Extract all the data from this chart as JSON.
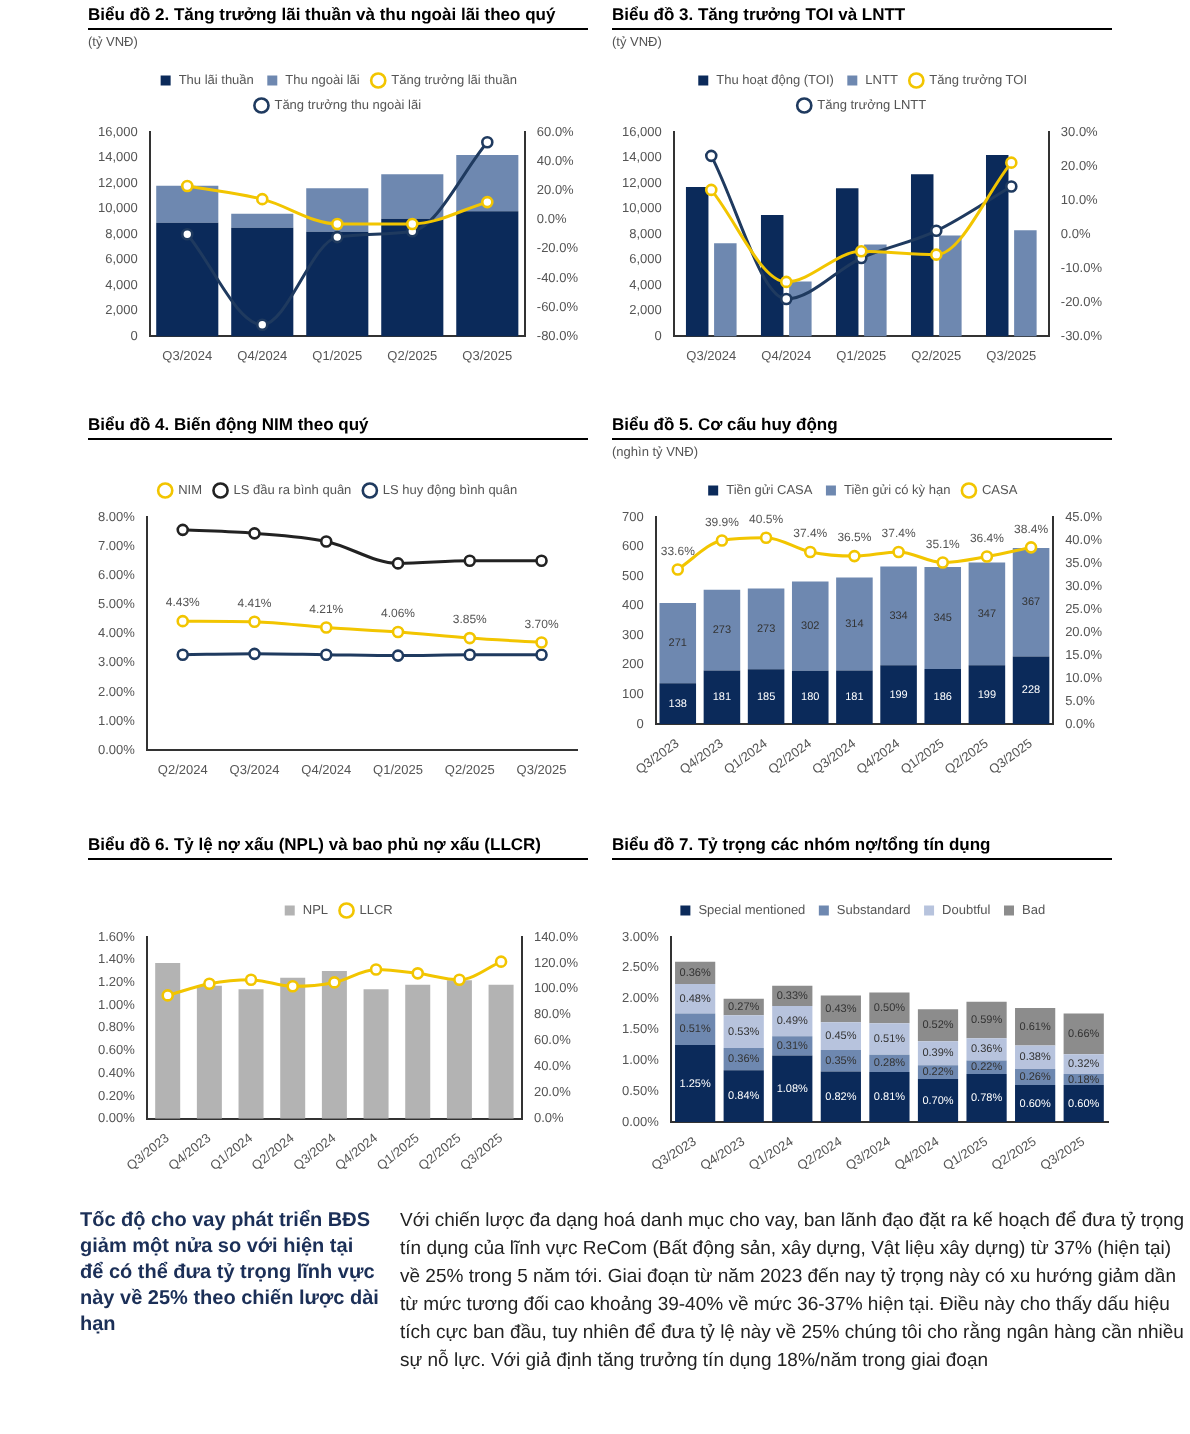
{
  "chart_data": [
    {
      "type": "bar",
      "title": "Biểu đồ 2. Tăng trưởng lãi thuần và thu ngoài lãi theo quý",
      "ylabel": "(tỷ VNĐ)",
      "categories": [
        "Q3/2024",
        "Q4/2024",
        "Q1/2025",
        "Q2/2025",
        "Q3/2025"
      ],
      "stacked": true,
      "legend": "top",
      "marker": "circle",
      "series": [
        {
          "name": "Thu lãi thuần",
          "color": "#0b2a5a",
          "values": [
            8900,
            8500,
            8200,
            9200,
            9800
          ]
        },
        {
          "name": "Thu ngoài lãi",
          "color": "#6e88b0",
          "values": [
            2900,
            1100,
            3400,
            3500,
            4400
          ]
        },
        {
          "name": "Tăng trưởng lãi thuần",
          "type": "line",
          "axis": "y2",
          "color": "#f2c500",
          "values": [
            23,
            14,
            -3,
            -3,
            12
          ]
        },
        {
          "name": "Tăng trưởng thu ngoài lãi",
          "type": "line",
          "axis": "y2",
          "color": "#1f3a5f",
          "values": [
            -10,
            -72,
            -12,
            -8,
            53
          ]
        }
      ],
      "ylim": [
        0,
        16000
      ],
      "yticks": [
        0,
        {
          "value": 2000,
          "label": "2,000"
        },
        {
          "value": 4000,
          "label": "4,000"
        },
        {
          "value": 6000,
          "label": "6,000"
        },
        {
          "value": 8000,
          "label": "8,000"
        },
        {
          "value": 10000,
          "label": "10,000"
        },
        {
          "value": 12000,
          "label": "12,000"
        },
        {
          "value": 14000,
          "label": "14,000"
        },
        {
          "value": 16000,
          "label": "16,000"
        }
      ],
      "y2lim": [
        -80,
        60
      ],
      "y2ticks": [
        {
          "value": -80,
          "label": "-80.0%"
        },
        {
          "value": -60,
          "label": "-60.0%"
        },
        {
          "value": -40,
          "label": "-40.0%"
        },
        {
          "value": -20,
          "label": "-20.0%"
        },
        {
          "value": 0,
          "label": "0.0%"
        },
        {
          "value": 20,
          "label": "20.0%"
        },
        {
          "value": 40,
          "label": "40.0%"
        },
        {
          "value": 60,
          "label": "60.0%"
        }
      ]
    },
    {
      "type": "bar",
      "title": "Biểu đồ 3. Tăng trưởng TOI và LNTT",
      "ylabel": "(tỷ VNĐ)",
      "categories": [
        "Q3/2024",
        "Q4/2024",
        "Q1/2025",
        "Q2/2025",
        "Q3/2025"
      ],
      "legend": "top",
      "marker": "circle",
      "series": [
        {
          "name": "Thu hoạt động (TOI)",
          "color": "#0b2a5a",
          "values": [
            11700,
            9500,
            11600,
            12700,
            14200
          ]
        },
        {
          "name": "LNTT",
          "color": "#6e88b0",
          "values": [
            7300,
            4300,
            7200,
            7900,
            8300
          ]
        },
        {
          "name": "Tăng trưởng TOI",
          "type": "line",
          "axis": "y2",
          "color": "#f2c500",
          "values": [
            13,
            -14,
            -5,
            -6,
            21
          ]
        },
        {
          "name": "Tăng trưởng LNTT",
          "type": "line",
          "axis": "y2",
          "color": "#1f3a5f",
          "values": [
            23,
            -19,
            -7,
            1,
            14
          ]
        }
      ],
      "ylim": [
        0,
        16000
      ],
      "yticks": [
        0,
        {
          "value": 2000,
          "label": "2,000"
        },
        {
          "value": 4000,
          "label": "4,000"
        },
        {
          "value": 6000,
          "label": "6,000"
        },
        {
          "value": 8000,
          "label": "8,000"
        },
        {
          "value": 10000,
          "label": "10,000"
        },
        {
          "value": 12000,
          "label": "12,000"
        },
        {
          "value": 14000,
          "label": "14,000"
        },
        {
          "value": 16000,
          "label": "16,000"
        }
      ],
      "y2lim": [
        -30,
        30
      ],
      "y2ticks": [
        {
          "value": -30,
          "label": "-30.0%"
        },
        {
          "value": -20,
          "label": "-20.0%"
        },
        {
          "value": -10,
          "label": "-10.0%"
        },
        {
          "value": 0,
          "label": "0.0%"
        },
        {
          "value": 10,
          "label": "10.0%"
        },
        {
          "value": 20,
          "label": "20.0%"
        },
        {
          "value": 30,
          "label": "30.0%"
        }
      ]
    },
    {
      "type": "line",
      "title": "Biểu đồ 4. Biến động NIM theo quý",
      "categories": [
        "Q2/2024",
        "Q3/2024",
        "Q4/2024",
        "Q1/2025",
        "Q2/2025",
        "Q3/2025"
      ],
      "legend": "top",
      "marker": "circle",
      "series": [
        {
          "name": "NIM",
          "color": "#f2c500",
          "values": [
            4.43,
            4.41,
            4.21,
            4.06,
            3.85,
            3.7
          ],
          "value_labels": [
            "4.43%",
            "4.41%",
            "4.21%",
            "4.06%",
            "3.85%",
            "3.70%"
          ]
        },
        {
          "name": "LS đầu ra bình quân",
          "color": "#222222",
          "values": [
            7.56,
            7.44,
            7.16,
            6.41,
            6.5,
            6.5
          ]
        },
        {
          "name": "LS huy động bình quân",
          "color": "#1f3a5f",
          "values": [
            3.28,
            3.31,
            3.28,
            3.25,
            3.28,
            3.28
          ]
        }
      ],
      "ylim": [
        0,
        8
      ],
      "yticks": [
        {
          "value": 0,
          "label": "0.00%"
        },
        {
          "value": 1,
          "label": "1.00%"
        },
        {
          "value": 2,
          "label": "2.00%"
        },
        {
          "value": 3,
          "label": "3.00%"
        },
        {
          "value": 4,
          "label": "4.00%"
        },
        {
          "value": 5,
          "label": "5.00%"
        },
        {
          "value": 6,
          "label": "6.00%"
        },
        {
          "value": 7,
          "label": "7.00%"
        },
        {
          "value": 8,
          "label": "8.00%"
        }
      ]
    },
    {
      "type": "bar",
      "title": "Biểu đồ 5. Cơ cấu huy động",
      "ylabel": "(nghìn tỷ VNĐ)",
      "categories": [
        "Q3/2023",
        "Q4/2023",
        "Q1/2024",
        "Q2/2024",
        "Q3/2024",
        "Q4/2024",
        "Q1/2025",
        "Q2/2025",
        "Q3/2025"
      ],
      "stacked": true,
      "legend": "top",
      "marker": "circle",
      "series": [
        {
          "name": "Tiền gửi CASA",
          "color": "#0b2a5a",
          "values": [
            138,
            181,
            185,
            180,
            181,
            199,
            186,
            199,
            228
          ],
          "value_labels": [
            "138",
            "181",
            "185",
            "180",
            "181",
            "199",
            "186",
            "199",
            "228"
          ]
        },
        {
          "name": "Tiền gửi có kỳ hạn",
          "color": "#6e88b0",
          "values": [
            271,
            273,
            273,
            302,
            314,
            334,
            345,
            347,
            367
          ],
          "value_labels": [
            "271",
            "273",
            "273",
            "302",
            "314",
            "334",
            "345",
            "347",
            "367"
          ]
        },
        {
          "name": "CASA",
          "type": "line",
          "axis": "y2",
          "color": "#f2c500",
          "values": [
            33.6,
            39.9,
            40.5,
            37.4,
            36.5,
            37.4,
            35.1,
            36.4,
            38.4
          ],
          "value_labels": [
            "33.6%",
            "39.9%",
            "40.5%",
            "37.4%",
            "36.5%",
            "37.4%",
            "35.1%",
            "36.4%",
            "38.4%"
          ]
        }
      ],
      "ylim": [
        0,
        700
      ],
      "yticks": [
        0,
        100,
        200,
        300,
        400,
        500,
        600,
        700
      ],
      "y2lim": [
        0,
        45
      ],
      "y2ticks": [
        {
          "value": 0,
          "label": "0.0%"
        },
        {
          "value": 5,
          "label": "5.0%"
        },
        {
          "value": 10,
          "label": "10.0%"
        },
        {
          "value": 15,
          "label": "15.0%"
        },
        {
          "value": 20,
          "label": "20.0%"
        },
        {
          "value": 25,
          "label": "25.0%"
        },
        {
          "value": 30,
          "label": "30.0%"
        },
        {
          "value": 35,
          "label": "35.0%"
        },
        {
          "value": 40,
          "label": "40.0%"
        },
        {
          "value": 45,
          "label": "45.0%"
        }
      ]
    },
    {
      "type": "bar",
      "title": "Biểu đồ 6. Tỷ lệ nợ xấu (NPL) và bao phủ nợ xấu (LLCR)",
      "categories": [
        "Q3/2023",
        "Q4/2023",
        "Q1/2024",
        "Q2/2024",
        "Q3/2024",
        "Q4/2024",
        "Q1/2025",
        "Q2/2025",
        "Q3/2025"
      ],
      "legend": "top",
      "marker": "circle",
      "series": [
        {
          "name": "NPL",
          "color": "#b3b3b3",
          "values": [
            1.37,
            1.17,
            1.14,
            1.24,
            1.3,
            1.14,
            1.18,
            1.22,
            1.18
          ]
        },
        {
          "name": "LLCR",
          "type": "line",
          "axis": "y2",
          "color": "#f2c500",
          "values": [
            95,
            104,
            107,
            102,
            105,
            115,
            112,
            107,
            121
          ]
        }
      ],
      "ylim": [
        0,
        1.6
      ],
      "yticks": [
        {
          "value": 0,
          "label": "0.00%"
        },
        {
          "value": 0.2,
          "label": "0.20%"
        },
        {
          "value": 0.4,
          "label": "0.40%"
        },
        {
          "value": 0.6,
          "label": "0.60%"
        },
        {
          "value": 0.8,
          "label": "0.80%"
        },
        {
          "value": 1,
          "label": "1.00%"
        },
        {
          "value": 1.2,
          "label": "1.20%"
        },
        {
          "value": 1.4,
          "label": "1.40%"
        },
        {
          "value": 1.6,
          "label": "1.60%"
        }
      ],
      "y2lim": [
        0,
        140
      ],
      "y2ticks": [
        {
          "value": 0,
          "label": "0.0%"
        },
        {
          "value": 20,
          "label": "20.0%"
        },
        {
          "value": 40,
          "label": "40.0%"
        },
        {
          "value": 60,
          "label": "60.0%"
        },
        {
          "value": 80,
          "label": "80.0%"
        },
        {
          "value": 100,
          "label": "100.0%"
        },
        {
          "value": 120,
          "label": "120.0%"
        },
        {
          "value": 140,
          "label": "140.0%"
        }
      ]
    },
    {
      "type": "bar",
      "title": "Biểu đồ 7. Tỷ trọng các nhóm nợ/tổng tín dụng",
      "categories": [
        "Q3/2023",
        "Q4/2023",
        "Q1/2024",
        "Q2/2024",
        "Q3/2024",
        "Q4/2024",
        "Q1/2025",
        "Q2/2025",
        "Q3/2025"
      ],
      "stacked": true,
      "legend": "top",
      "series": [
        {
          "name": "Special mentioned",
          "color": "#0b2a5a",
          "values": [
            1.25,
            0.84,
            1.08,
            0.82,
            0.81,
            0.7,
            0.78,
            0.6,
            0.6
          ],
          "value_labels": [
            "1.25%",
            "0.84%",
            "1.08%",
            "0.82%",
            "0.81%",
            "0.70%",
            "0.78%",
            "0.60%",
            "0.60%"
          ]
        },
        {
          "name": "Substandard",
          "color": "#6e88b0",
          "values": [
            0.51,
            0.36,
            0.31,
            0.35,
            0.28,
            0.22,
            0.22,
            0.26,
            0.18
          ],
          "value_labels": [
            "0.51%",
            "0.36%",
            "0.31%",
            "0.35%",
            "0.28%",
            "0.22%",
            "0.22%",
            "0.26%",
            "0.18%"
          ]
        },
        {
          "name": "Doubtful",
          "color": "#b7c3dd",
          "values": [
            0.48,
            0.53,
            0.49,
            0.45,
            0.51,
            0.39,
            0.36,
            0.38,
            0.32
          ],
          "value_labels": [
            "0.48%",
            "0.53%",
            "0.49%",
            "0.45%",
            "0.51%",
            "0.39%",
            "0.36%",
            "0.38%",
            "0.32%"
          ]
        },
        {
          "name": "Bad",
          "color": "#8c8c8c",
          "values": [
            0.36,
            0.27,
            0.33,
            0.43,
            0.5,
            0.52,
            0.59,
            0.61,
            0.66
          ],
          "value_labels": [
            "0.36%",
            "0.27%",
            "0.33%",
            "0.43%",
            "0.50%",
            "0.52%",
            "0.59%",
            "0.61%",
            "0.66%"
          ]
        }
      ],
      "ylim": [
        0,
        3
      ],
      "yticks": [
        {
          "value": 0,
          "label": "0.00%"
        },
        {
          "value": 0.5,
          "label": "0.50%"
        },
        {
          "value": 1,
          "label": "1.00%"
        },
        {
          "value": 1.5,
          "label": "1.50%"
        },
        {
          "value": 2,
          "label": "2.00%"
        },
        {
          "value": 2.5,
          "label": "2.50%"
        },
        {
          "value": 3,
          "label": "3.00%"
        }
      ]
    },
    {
      "type": "other",
      "title": "Tốc độ cho vay phát triển BĐS giảm một nửa so với hiện tại để có thể đưa tỷ trọng lĩnh vực này về 25% theo chiến lược dài hạn",
      "annotations": [
        "Với chiến lược đa dạng hoá danh mục cho vay, ban lãnh đạo đặt ra kế hoạch để đưa tỷ trọng tín dụng của lĩnh vực ReCom (Bất động sản, xây dựng, Vật liệu xây dựng) từ 37% (hiện tại) về 25% trong 5 năm tới. Giai đoạn từ năm 2023 đến nay tỷ trọng này có xu hướng giảm dần từ mức tương đối cao khoảng 39-40% về mức 36-37% hiện tại. Điều này cho thấy dấu hiệu tích cực ban đầu, tuy nhiên để đưa tỷ lệ này về 25% chúng tôi cho rằng ngân hàng cần nhiều sự nỗ lực. Với giả định tăng trưởng tín dụng 18%/năm trong giai đoạn"
      ]
    }
  ]
}
